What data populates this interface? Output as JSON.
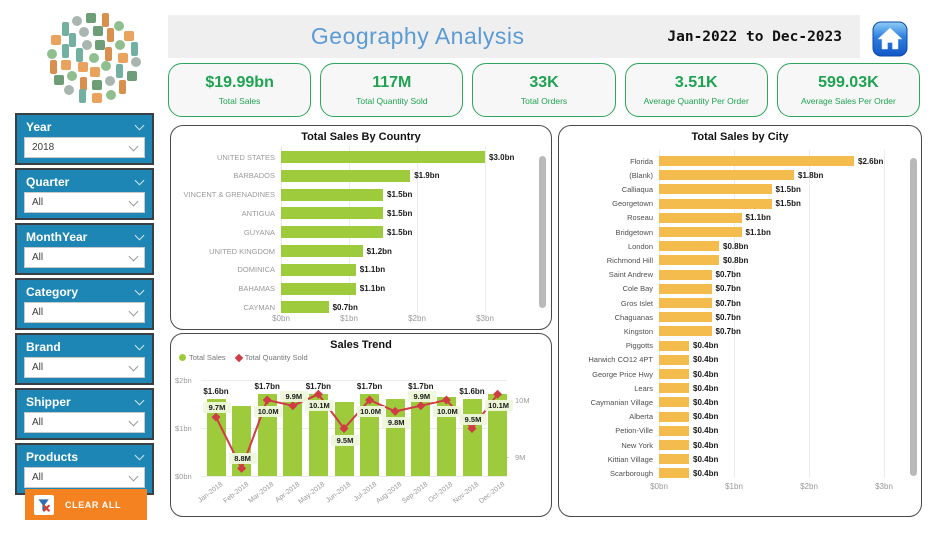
{
  "header": {
    "title": "Geography Analysis",
    "date_range": "Jan-2022 to Dec-2023"
  },
  "icons": {
    "home": "home-icon",
    "clear_filters": "funnel-clear-icon",
    "logo": "product-collage-logo"
  },
  "colors": {
    "title_blue": "#5b9bd5",
    "kpi_green": "#1fa351",
    "filter_blue": "#1e86b5",
    "bar_green": "#9dcb3b",
    "line_red": "#d13b45",
    "bar_amber": "#f4bc4c",
    "button_orange": "#f58220"
  },
  "kpis": [
    {
      "value": "$19.99bn",
      "label": "Total Sales"
    },
    {
      "value": "117M",
      "label": "Total Quantity Sold"
    },
    {
      "value": "33K",
      "label": "Total Orders"
    },
    {
      "value": "3.51K",
      "label": "Average Quantity Per Order"
    },
    {
      "value": "599.03K",
      "label": "Average Sales Per Order"
    }
  ],
  "filters": {
    "items": [
      {
        "label": "Year",
        "value": "2018"
      },
      {
        "label": "Quarter",
        "value": "All"
      },
      {
        "label": "MonthYear",
        "value": "All"
      },
      {
        "label": "Category",
        "value": "All"
      },
      {
        "label": "Brand",
        "value": "All"
      },
      {
        "label": "Shipper",
        "value": "All"
      },
      {
        "label": "Products",
        "value": "All"
      }
    ],
    "clear_all_label": "CLEAR ALL"
  },
  "chart_data": [
    {
      "type": "bar",
      "orientation": "horizontal",
      "title": "Total Sales By Country",
      "categories": [
        "UNITED STATES",
        "BARBADOS",
        "VINCENT & GRENADINES",
        "ANTIGUA",
        "GUYANA",
        "UNITED KINGDOM",
        "DOMINICA",
        "BAHAMAS",
        "CAYMAN"
      ],
      "values": [
        3.0,
        1.9,
        1.5,
        1.5,
        1.5,
        1.2,
        1.1,
        1.1,
        0.7
      ],
      "value_labels": [
        "$3.0bn",
        "$1.9bn",
        "$1.5bn",
        "$1.5bn",
        "$1.5bn",
        "$1.2bn",
        "$1.1bn",
        "$1.1bn",
        "$0.7bn"
      ],
      "x_ticks": [
        "$0bn",
        "$1bn",
        "$2bn",
        "$3bn"
      ],
      "x_tick_values": [
        0,
        1,
        2,
        3
      ],
      "xlim": [
        0,
        3.3
      ],
      "units": "bn USD",
      "bar_color": "#9dcb3b",
      "grid": true
    },
    {
      "type": "bar+line",
      "title": "Sales Trend",
      "categories": [
        "Jan-2018",
        "Feb-2018",
        "Mar-2018",
        "Apr-2018",
        "May-2018",
        "Jun-2018",
        "Jul-2018",
        "Aug-2018",
        "Sep-2018",
        "Oct-2018",
        "Nov-2018",
        "Dec-2018"
      ],
      "legend": [
        "Total Sales",
        "Total Quantity Sold"
      ],
      "legend_position": "top-left",
      "series": [
        {
          "name": "Total Sales",
          "mark": "bar",
          "axis": "left",
          "color": "#9dcb3b",
          "values": [
            1.6,
            1.45,
            1.7,
            1.65,
            1.7,
            1.55,
            1.7,
            1.6,
            1.7,
            1.65,
            1.6,
            1.7
          ],
          "labels": [
            "$1.6bn",
            null,
            "$1.7bn",
            null,
            "$1.7bn",
            null,
            "$1.7bn",
            null,
            "$1.7bn",
            null,
            "$1.6bn",
            null
          ]
        },
        {
          "name": "Total Quantity Sold",
          "mark": "line",
          "axis": "right",
          "color": "#d13b45",
          "values": [
            9.7,
            8.8,
            10.0,
            9.9,
            10.1,
            9.5,
            10.0,
            9.8,
            9.9,
            10.0,
            9.5,
            10.1
          ],
          "labels": [
            "9.7M",
            "8.8M",
            "10.0M",
            "9.9M",
            "10.1M",
            "9.5M",
            "10.0M",
            "9.8M",
            "9.9M",
            "10.0M",
            "9.5M",
            "10.1M"
          ]
        }
      ],
      "left_axis": {
        "ticks": [
          "$2bn",
          "$1bn",
          "$0bn"
        ],
        "range": [
          0,
          2
        ]
      },
      "right_axis": {
        "ticks": [
          "10M",
          "9M"
        ],
        "shown_range": [
          9,
          10
        ]
      },
      "grid": true
    },
    {
      "type": "bar",
      "orientation": "horizontal",
      "title": "Total Sales by City",
      "categories": [
        "Florida",
        "(Blank)",
        "Calliaqua",
        "Georgetown",
        "Roseau",
        "Bridgetown",
        "London",
        "Richmond Hill",
        "Saint Andrew",
        "Cole Bay",
        "Gros Islet",
        "Chaguanas",
        "Kingston",
        "Piggotts",
        "Harwich CO12 4PT",
        "George Price Hwy",
        "Lears",
        "Caymanian Village",
        "Alberta",
        "Petion-Ville",
        "New York",
        "Kittian Village",
        "Scarborough"
      ],
      "values": [
        2.6,
        1.8,
        1.5,
        1.5,
        1.1,
        1.1,
        0.8,
        0.8,
        0.7,
        0.7,
        0.7,
        0.7,
        0.7,
        0.4,
        0.4,
        0.4,
        0.4,
        0.4,
        0.4,
        0.4,
        0.4,
        0.4,
        0.4
      ],
      "value_labels": [
        "$2.6bn",
        "$1.8bn",
        "$1.5bn",
        "$1.5bn",
        "$1.1bn",
        "$1.1bn",
        "$0.8bn",
        "$0.8bn",
        "$0.7bn",
        "$0.7bn",
        "$0.7bn",
        "$0.7bn",
        "$0.7bn",
        "$0.4bn",
        "$0.4bn",
        "$0.4bn",
        "$0.4bn",
        "$0.4bn",
        "$0.4bn",
        "$0.4bn",
        "$0.4bn",
        "$0.4bn",
        "$0.4bn"
      ],
      "x_ticks": [
        "$0bn",
        "$1bn",
        "$2bn",
        "$3bn"
      ],
      "x_tick_values": [
        0,
        1,
        2,
        3
      ],
      "xlim": [
        0,
        3.3
      ],
      "units": "bn USD",
      "bar_color": "#f4bc4c",
      "grid": true
    }
  ]
}
